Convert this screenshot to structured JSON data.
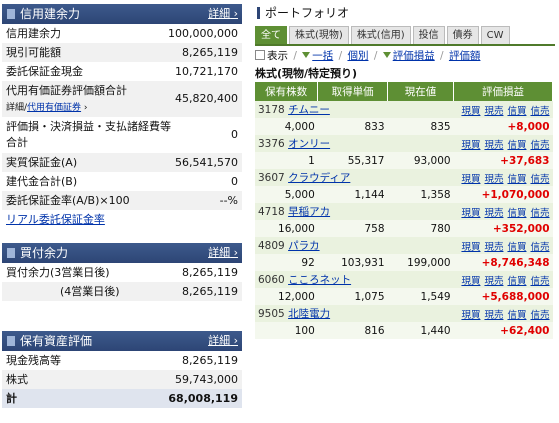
{
  "credit": {
    "title": "信用建余力",
    "more": "詳細",
    "rows": [
      {
        "label": "信用建余力",
        "value": "100,000,000"
      },
      {
        "label": "現引可能額",
        "value": "8,265,119"
      },
      {
        "label": "委託保証金現金",
        "value": "10,721,170"
      },
      {
        "label": "代用有価証券評価額合計",
        "value": "45,820,400",
        "sub_prefix": "詳細/",
        "sub_link": "代用有価証券"
      },
      {
        "label": "評価損・決済損益・支払諸経費等合計",
        "value": "0"
      },
      {
        "label": "実質保証金(A)",
        "value": "56,541,570"
      },
      {
        "label": "建代金合計(B)",
        "value": "0"
      },
      {
        "label": "委託保証金率(A/B)×100",
        "value": "--%"
      }
    ],
    "real_link": "リアル委託保証金率"
  },
  "buying": {
    "title": "買付余力",
    "more": "詳細",
    "rows": [
      {
        "label": "買付余力(3営業日後)",
        "value": "8,265,119"
      },
      {
        "label": "(4営業日後)",
        "value": "8,265,119"
      }
    ]
  },
  "assets": {
    "title": "保有資産評価",
    "more": "詳細",
    "rows": [
      {
        "label": "現金残高等",
        "value": "8,265,119"
      },
      {
        "label": "株式",
        "value": "59,743,000"
      }
    ],
    "total_label": "計",
    "total_value": "68,008,119"
  },
  "portfolio": {
    "title": "ポートフォリオ",
    "tabs": [
      "全て",
      "株式(現物)",
      "株式(信用)",
      "投信",
      "債券",
      "CW"
    ],
    "toolbar": {
      "display": "表示",
      "all": "一括",
      "each": "個別",
      "eval_pl": "評価損益",
      "eval_amt": "評価額"
    },
    "section": "株式(現物/特定預り)",
    "headers": [
      "保有株数",
      "取得単価",
      "現在値",
      "評価損益"
    ],
    "actions": [
      "現買",
      "現売",
      "信買",
      "信売"
    ],
    "holdings": [
      {
        "code": "3178",
        "name": "チムニー",
        "qty": "4,000",
        "cost": "833",
        "price": "835",
        "pl": "+8,000"
      },
      {
        "code": "3376",
        "name": "オンリー",
        "qty": "1",
        "cost": "55,317",
        "price": "93,000",
        "pl": "+37,683"
      },
      {
        "code": "3607",
        "name": "クラウディア",
        "qty": "5,000",
        "cost": "1,144",
        "price": "1,358",
        "pl": "+1,070,000"
      },
      {
        "code": "4718",
        "name": "早稲アカ",
        "qty": "16,000",
        "cost": "758",
        "price": "780",
        "pl": "+352,000"
      },
      {
        "code": "4809",
        "name": "パラカ",
        "qty": "92",
        "cost": "103,931",
        "price": "199,000",
        "pl": "+8,746,348"
      },
      {
        "code": "6060",
        "name": "こころネット",
        "qty": "12,000",
        "cost": "1,075",
        "price": "1,549",
        "pl": "+5,688,000"
      },
      {
        "code": "9505",
        "name": "北陸電力",
        "qty": "100",
        "cost": "816",
        "price": "1,440",
        "pl": "+62,400"
      }
    ]
  }
}
